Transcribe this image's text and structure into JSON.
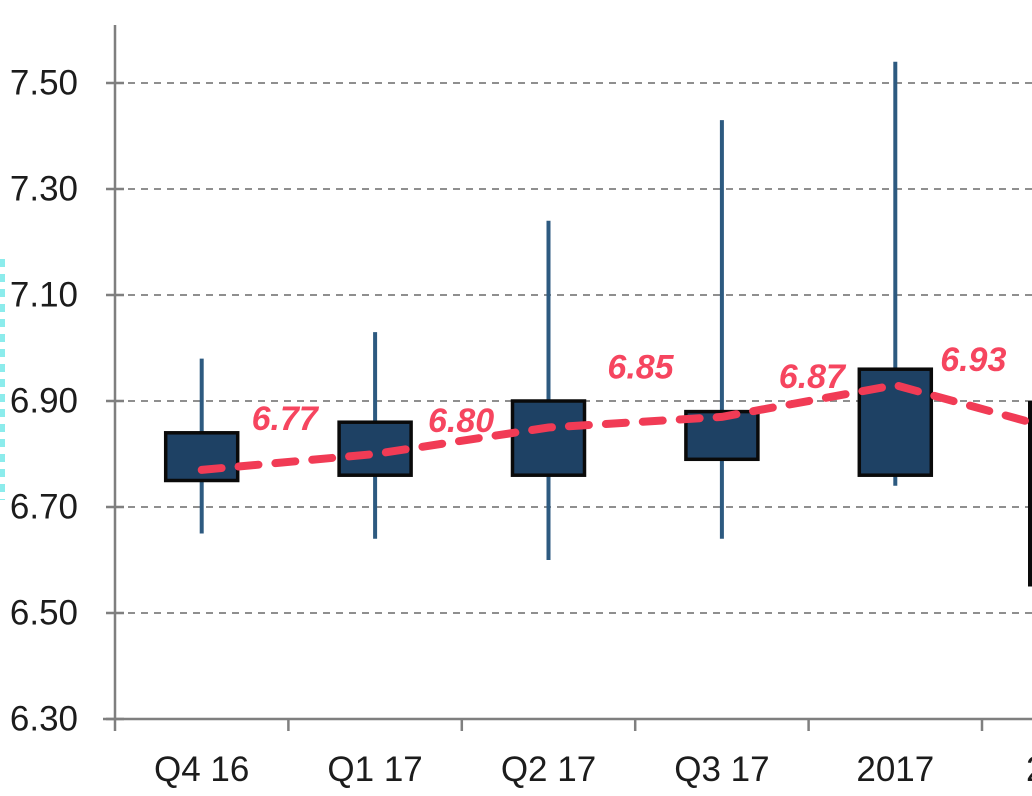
{
  "chart_data": {
    "type": "candlestick",
    "title": "",
    "xlabel": "",
    "ylabel": "",
    "categories": [
      "Q4 16",
      "Q1 17",
      "Q2 17",
      "Q3 17",
      "2017"
    ],
    "next_category_partial": "2",
    "yticks": [
      "7.50",
      "7.30",
      "7.10",
      "6.90",
      "6.70",
      "6.50",
      "6.30"
    ],
    "ylim": [
      6.3,
      7.61
    ],
    "grid": "horizontal-dashed",
    "legend_position": "none",
    "boxes": [
      {
        "category": "Q4 16",
        "high": 6.98,
        "box_top": 6.84,
        "box_bottom": 6.75,
        "low": 6.65
      },
      {
        "category": "Q1 17",
        "high": 7.03,
        "box_top": 6.86,
        "box_bottom": 6.76,
        "low": 6.64
      },
      {
        "category": "Q2 17",
        "high": 7.24,
        "box_top": 6.9,
        "box_bottom": 6.76,
        "low": 6.6
      },
      {
        "category": "Q3 17",
        "high": 7.43,
        "box_top": 6.88,
        "box_bottom": 6.79,
        "low": 6.64
      },
      {
        "category": "2017",
        "high": 7.54,
        "box_top": 6.96,
        "box_bottom": 6.76,
        "low": 6.74
      }
    ],
    "partial_box_right_edge": {
      "box_top": 6.9,
      "box_bottom": 6.55
    },
    "mean_series": {
      "style": "dashed",
      "labels": [
        "6.77",
        "6.80",
        "6.85",
        "6.87",
        "6.93"
      ],
      "values": [
        6.77,
        6.8,
        6.85,
        6.87,
        6.93
      ],
      "next_value_offscreen": 6.84
    }
  },
  "colors": {
    "background": "#ffffff",
    "box_fill": "#1e4164",
    "box_border": "#0a0a0a",
    "whisker": "#2d5a80",
    "mean_line": "#f13b55",
    "mean_label_text": "#f6455f",
    "gridline": "#8f8f8f",
    "axis": "#7f7f7f",
    "tick_text": "#1c1c1c",
    "left_edge_dashes": "#8cecec"
  }
}
